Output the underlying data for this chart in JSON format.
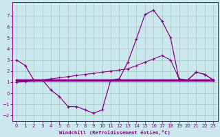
{
  "xlabel": "Windchill (Refroidissement éolien,°C)",
  "background_color": "#cce8ee",
  "grid_color": "#aad4cc",
  "line_color": "#880088",
  "xlim": [
    -0.5,
    23.5
  ],
  "ylim": [
    -2.5,
    8.2
  ],
  "yticks": [
    -2,
    -1,
    0,
    1,
    2,
    3,
    4,
    5,
    6,
    7
  ],
  "xticks": [
    0,
    1,
    2,
    3,
    4,
    5,
    6,
    7,
    8,
    9,
    10,
    11,
    12,
    13,
    14,
    15,
    16,
    17,
    18,
    19,
    20,
    21,
    22,
    23
  ],
  "series1_x": [
    0,
    1,
    2,
    3,
    4,
    5,
    6,
    7,
    8,
    9,
    10,
    11,
    12,
    13,
    14,
    15,
    16,
    17,
    18,
    19,
    20,
    21,
    22,
    23
  ],
  "series1_y": [
    3.0,
    2.5,
    1.2,
    1.2,
    0.3,
    -0.3,
    -1.2,
    -1.2,
    -1.5,
    -1.8,
    -1.5,
    1.2,
    1.3,
    2.8,
    4.9,
    7.1,
    7.5,
    6.5,
    5.0,
    1.2,
    1.2,
    1.9,
    1.7,
    1.2
  ],
  "series2_x": [
    0,
    23
  ],
  "series2_y": [
    1.2,
    1.2
  ],
  "series3_x": [
    0,
    1,
    2,
    3,
    4,
    5,
    6,
    7,
    8,
    9,
    10,
    11,
    12,
    13,
    14,
    15,
    16,
    17,
    18,
    19,
    20,
    21,
    22,
    23
  ],
  "series3_y": [
    1.0,
    1.05,
    1.1,
    1.2,
    1.3,
    1.4,
    1.5,
    1.6,
    1.7,
    1.8,
    1.9,
    2.0,
    2.1,
    2.2,
    2.5,
    2.8,
    3.1,
    3.4,
    3.0,
    1.3,
    1.2,
    1.9,
    1.7,
    1.2
  ]
}
